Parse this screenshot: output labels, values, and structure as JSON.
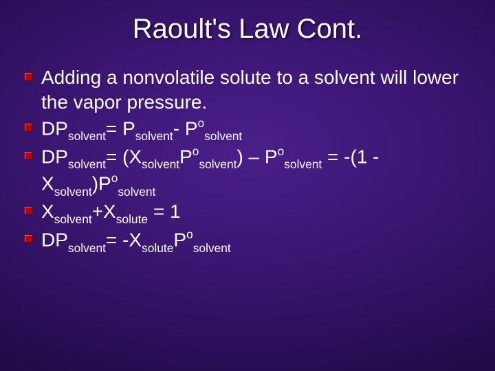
{
  "slide": {
    "background": {
      "gradient_center": "#4a1f8a",
      "gradient_mid1": "#3a1570",
      "gradient_mid2": "#260d52",
      "gradient_outer": "#120530",
      "gradient_edge": "#050118"
    },
    "title": {
      "text": "Raoult's Law Cont.",
      "color": "#ffffff",
      "fontsize": 40
    },
    "bullet_style": {
      "color": "#c00000",
      "highlight": "#ff6060",
      "shadow": "#700000",
      "size": 11
    },
    "body_fontsize": 28,
    "body_color": "#ffffff",
    "items": {
      "i1": {
        "text": "Adding a nonvolatile solute to a solvent will lower the vapor pressure."
      },
      "i2": {
        "delta": "D",
        "p": "P",
        "solvent": "solvent",
        "eq": "= P",
        "minus": "- P",
        "o": "o"
      },
      "i3": {
        "delta": "D",
        "p": "P",
        "solvent": "solvent",
        "eq": "= (X",
        "po": "P",
        "o": "o",
        "close": ") – P",
        "tail": " = -(1 -",
        "line2a": "X",
        "line2b": ")P"
      },
      "i4": {
        "x": "X",
        "solvent": "solvent",
        "plus": "+X",
        "solute": "solute",
        "eq": " = 1"
      },
      "i5": {
        "delta": "D",
        "p": "P",
        "solvent": "solvent",
        "eq": "= -X",
        "solute": "solute",
        "po": "P",
        "o": "o"
      }
    }
  }
}
